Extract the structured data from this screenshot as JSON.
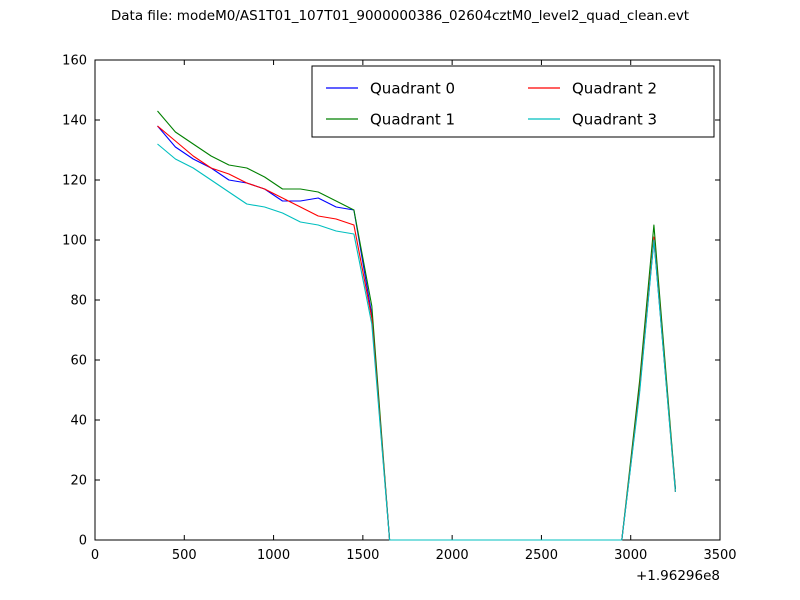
{
  "title": "Data file: modeM0/AS1T01_107T01_9000000386_02604cztM0_level2_quad_clean.evt",
  "chart_data": {
    "type": "line",
    "title": "Data file: modeM0/AS1T01_107T01_9000000386_02604cztM0_level2_quad_clean.evt",
    "xlabel": "",
    "ylabel": "",
    "xlim": [
      0,
      3500
    ],
    "ylim": [
      0,
      160
    ],
    "xticks": [
      0,
      500,
      1000,
      1500,
      2000,
      2500,
      3000,
      3500
    ],
    "yticks": [
      0,
      20,
      40,
      60,
      80,
      100,
      120,
      140,
      160
    ],
    "x_offset_label": "+1.96296e8",
    "grid": false,
    "legend_position": "upper center",
    "legend_columns": 2,
    "x": [
      350,
      450,
      550,
      650,
      750,
      850,
      950,
      1050,
      1150,
      1250,
      1350,
      1450,
      1550,
      1650,
      2000,
      2500,
      2950,
      3050,
      3130,
      3250
    ],
    "series": [
      {
        "name": "Quadrant 0",
        "color": "#0000ff",
        "values": [
          138,
          131,
          127,
          124,
          120,
          119,
          117,
          113,
          113,
          114,
          111,
          110,
          75,
          0,
          0,
          0,
          0,
          50,
          100,
          17
        ]
      },
      {
        "name": "Quadrant 1",
        "color": "#008000",
        "values": [
          143,
          136,
          132,
          128,
          125,
          124,
          121,
          117,
          117,
          116,
          113,
          110,
          78,
          0,
          0,
          0,
          0,
          53,
          105,
          17
        ]
      },
      {
        "name": "Quadrant 2",
        "color": "#ff0000",
        "values": [
          138,
          133,
          128,
          124,
          122,
          119,
          117,
          114,
          111,
          108,
          107,
          105,
          74,
          0,
          0,
          0,
          0,
          50,
          101,
          16
        ]
      },
      {
        "name": "Quadrant 3",
        "color": "#00bfbf",
        "values": [
          132,
          127,
          124,
          120,
          116,
          112,
          111,
          109,
          106,
          105,
          103,
          102,
          72,
          0,
          0,
          0,
          0,
          49,
          100,
          16
        ]
      }
    ]
  }
}
